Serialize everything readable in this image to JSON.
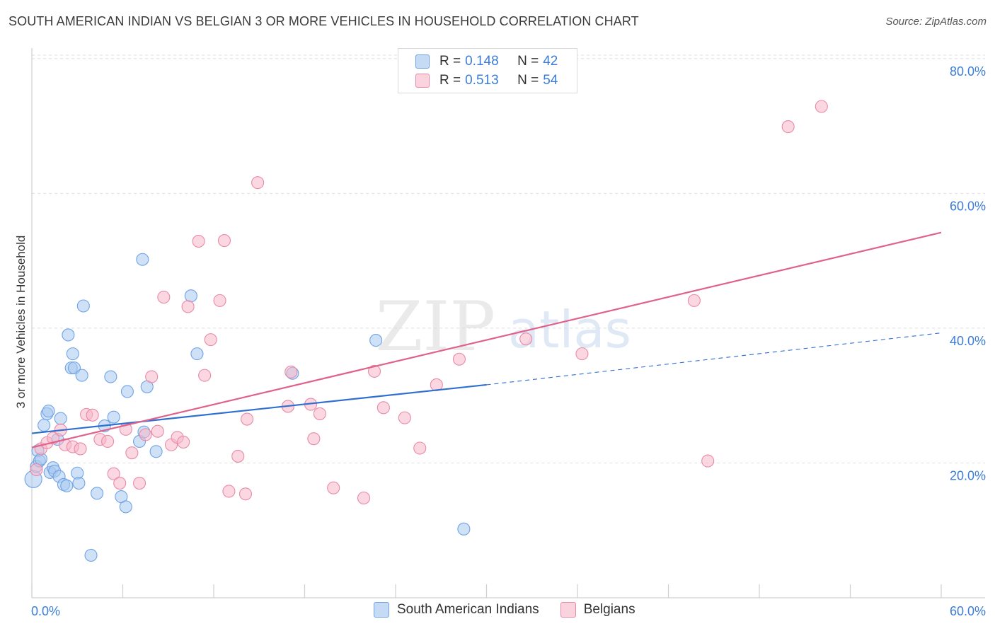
{
  "title": "SOUTH AMERICAN INDIAN VS BELGIAN 3 OR MORE VEHICLES IN HOUSEHOLD CORRELATION CHART",
  "source": "Source: ZipAtlas.com",
  "watermark": {
    "zip": "ZIP",
    "atlas": "atlas"
  },
  "legend_top": [
    {
      "r_label": "R =",
      "r_value": "0.148",
      "n_label": "N =",
      "n_value": "42",
      "color": "#a8c8f0"
    },
    {
      "r_label": "R =",
      "r_value": "0.513",
      "n_label": "N =",
      "n_value": "54",
      "color": "#f7b6c9"
    }
  ],
  "legend_bottom": [
    {
      "label": "South American Indians",
      "color": "#a8c8f0"
    },
    {
      "label": "Belgians",
      "color": "#f7b6c9"
    }
  ],
  "chart_data": {
    "type": "scatter",
    "title": "SOUTH AMERICAN INDIAN VS BELGIAN 3 OR MORE VEHICLES IN HOUSEHOLD CORRELATION CHART",
    "xlabel": "",
    "ylabel": "3 or more Vehicles in Household",
    "xlim": [
      0,
      60
    ],
    "ylim": [
      0,
      82
    ],
    "x_tick_labels": [
      "0.0%",
      "60.0%"
    ],
    "y_ticks": [
      20,
      40,
      60,
      80
    ],
    "y_tick_labels": [
      "20.0%",
      "40.0%",
      "60.0%",
      "80.0%"
    ],
    "grid": "horizontal dashed",
    "legend_position": "top-center",
    "series": [
      {
        "name": "South American Indians",
        "color": "#6fa3e6",
        "fill": "#a8c8f0",
        "trend": {
          "x": [
            0,
            30
          ],
          "y": [
            24.4,
            31.6
          ],
          "dashed_to": [
            60,
            39.3
          ],
          "color": "#2f6fd0"
        },
        "points": [
          [
            0.1,
            17.6
          ],
          [
            0.3,
            19.5
          ],
          [
            0.4,
            21.8
          ],
          [
            0.5,
            20.3
          ],
          [
            0.6,
            20.6
          ],
          [
            0.8,
            25.6
          ],
          [
            1.0,
            27.3
          ],
          [
            1.1,
            27.7
          ],
          [
            1.2,
            18.6
          ],
          [
            1.4,
            19.3
          ],
          [
            1.5,
            18.8
          ],
          [
            1.7,
            23.5
          ],
          [
            1.8,
            18.0
          ],
          [
            1.9,
            26.6
          ],
          [
            2.1,
            16.8
          ],
          [
            2.3,
            16.6
          ],
          [
            2.4,
            39.0
          ],
          [
            2.6,
            34.1
          ],
          [
            2.7,
            36.2
          ],
          [
            2.8,
            34.1
          ],
          [
            3.0,
            18.5
          ],
          [
            3.1,
            17.0
          ],
          [
            3.3,
            33.0
          ],
          [
            3.4,
            43.3
          ],
          [
            4.3,
            15.5
          ],
          [
            4.8,
            25.5
          ],
          [
            5.2,
            32.8
          ],
          [
            5.4,
            26.8
          ],
          [
            5.9,
            15.0
          ],
          [
            6.2,
            13.5
          ],
          [
            6.3,
            30.6
          ],
          [
            7.1,
            23.2
          ],
          [
            7.3,
            50.2
          ],
          [
            7.4,
            24.6
          ],
          [
            7.6,
            31.3
          ],
          [
            8.2,
            21.7
          ],
          [
            10.5,
            44.8
          ],
          [
            10.9,
            36.2
          ],
          [
            17.2,
            33.3
          ],
          [
            22.7,
            38.2
          ],
          [
            28.5,
            10.2
          ],
          [
            3.9,
            6.3
          ]
        ]
      },
      {
        "name": "Belgians",
        "color": "#e98aa8",
        "fill": "#f7b6c9",
        "trend": {
          "x": [
            0,
            60
          ],
          "y": [
            22.3,
            54.2
          ],
          "color": "#e0628b"
        },
        "points": [
          [
            0.3,
            19.0
          ],
          [
            0.6,
            22.1
          ],
          [
            1.0,
            23.0
          ],
          [
            1.4,
            23.7
          ],
          [
            1.9,
            24.9
          ],
          [
            2.2,
            22.7
          ],
          [
            2.7,
            22.4
          ],
          [
            3.2,
            22.1
          ],
          [
            3.6,
            27.2
          ],
          [
            4.0,
            27.1
          ],
          [
            4.5,
            23.5
          ],
          [
            5.0,
            23.2
          ],
          [
            5.4,
            18.4
          ],
          [
            5.8,
            17.0
          ],
          [
            6.2,
            25.0
          ],
          [
            6.6,
            21.5
          ],
          [
            7.1,
            17.0
          ],
          [
            7.5,
            24.2
          ],
          [
            7.9,
            32.8
          ],
          [
            8.3,
            24.7
          ],
          [
            8.7,
            44.6
          ],
          [
            9.2,
            22.7
          ],
          [
            9.6,
            23.8
          ],
          [
            10.0,
            23.1
          ],
          [
            10.3,
            43.2
          ],
          [
            11.0,
            52.9
          ],
          [
            11.4,
            33.0
          ],
          [
            11.8,
            38.3
          ],
          [
            12.4,
            44.1
          ],
          [
            12.7,
            53.0
          ],
          [
            13.0,
            15.8
          ],
          [
            13.6,
            21.0
          ],
          [
            14.1,
            15.4
          ],
          [
            14.2,
            26.5
          ],
          [
            14.9,
            61.6
          ],
          [
            16.9,
            28.4
          ],
          [
            17.1,
            33.5
          ],
          [
            18.4,
            28.7
          ],
          [
            18.6,
            23.6
          ],
          [
            19.0,
            27.3
          ],
          [
            19.9,
            16.3
          ],
          [
            21.9,
            14.8
          ],
          [
            22.6,
            33.6
          ],
          [
            23.2,
            28.2
          ],
          [
            24.6,
            26.7
          ],
          [
            25.6,
            22.2
          ],
          [
            26.7,
            31.6
          ],
          [
            28.2,
            35.4
          ],
          [
            32.6,
            38.4
          ],
          [
            36.3,
            36.2
          ],
          [
            43.7,
            44.1
          ],
          [
            44.6,
            20.3
          ],
          [
            49.9,
            69.9
          ],
          [
            52.1,
            72.9
          ]
        ]
      }
    ]
  }
}
